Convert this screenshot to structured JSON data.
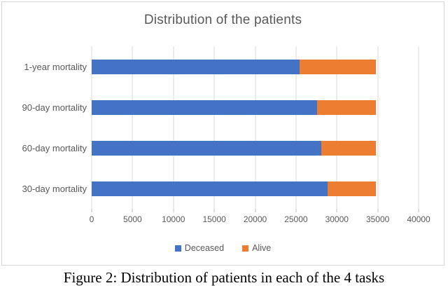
{
  "figure": {
    "caption": "Figure 2: Distribution of patients in each of the 4 tasks"
  },
  "chart_data": {
    "type": "bar",
    "orientation": "horizontal",
    "stacked": true,
    "title": "Distribution of the patients",
    "categories": [
      "1-year mortality",
      "90-day mortality",
      "60-day mortality",
      "30-day mortality"
    ],
    "series": [
      {
        "name": "Deceased",
        "color": "#4472C4",
        "values": [
          25400,
          27600,
          28100,
          28900
        ]
      },
      {
        "name": "Alive",
        "color": "#ED7D31",
        "values": [
          9400,
          7200,
          6700,
          5900
        ]
      }
    ],
    "totals": [
      34800,
      34800,
      34800,
      34800
    ],
    "x_ticks": [
      0,
      5000,
      10000,
      15000,
      20000,
      25000,
      30000,
      35000,
      40000
    ],
    "xlim": [
      0,
      40000
    ],
    "xlabel": "",
    "ylabel": "",
    "grid": "vertical",
    "legend_position": "bottom",
    "colors": {
      "gridline": "#d9d9d9",
      "chart_text": "#595959",
      "chart_border": "#d6d6d6",
      "caption_text": "#000000"
    }
  }
}
